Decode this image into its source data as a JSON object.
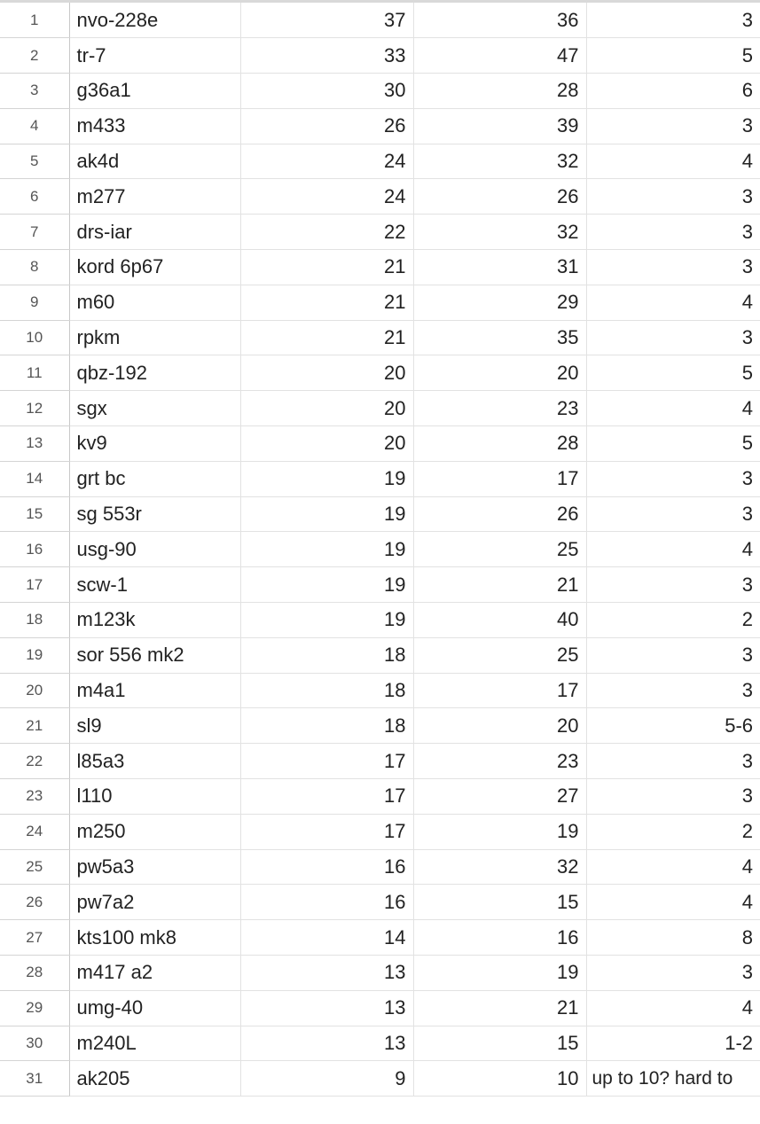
{
  "sheet": {
    "rows": [
      {
        "n": "1",
        "a": "nvo-228e",
        "b": "37",
        "c": "36",
        "d": "3"
      },
      {
        "n": "2",
        "a": "tr-7",
        "b": "33",
        "c": "47",
        "d": "5"
      },
      {
        "n": "3",
        "a": "g36a1",
        "b": "30",
        "c": "28",
        "d": "6"
      },
      {
        "n": "4",
        "a": "m433",
        "b": "26",
        "c": "39",
        "d": "3"
      },
      {
        "n": "5",
        "a": "ak4d",
        "b": "24",
        "c": "32",
        "d": "4"
      },
      {
        "n": "6",
        "a": "m277",
        "b": "24",
        "c": "26",
        "d": "3"
      },
      {
        "n": "7",
        "a": "drs-iar",
        "b": "22",
        "c": "32",
        "d": "3"
      },
      {
        "n": "8",
        "a": "kord 6p67",
        "b": "21",
        "c": "31",
        "d": "3"
      },
      {
        "n": "9",
        "a": "m60",
        "b": "21",
        "c": "29",
        "d": "4"
      },
      {
        "n": "10",
        "a": "rpkm",
        "b": "21",
        "c": "35",
        "d": "3"
      },
      {
        "n": "11",
        "a": "qbz-192",
        "b": "20",
        "c": "20",
        "d": "5"
      },
      {
        "n": "12",
        "a": "sgx",
        "b": "20",
        "c": "23",
        "d": "4"
      },
      {
        "n": "13",
        "a": "kv9",
        "b": "20",
        "c": "28",
        "d": "5"
      },
      {
        "n": "14",
        "a": "grt bc",
        "b": "19",
        "c": "17",
        "d": "3"
      },
      {
        "n": "15",
        "a": "sg 553r",
        "b": "19",
        "c": "26",
        "d": "3"
      },
      {
        "n": "16",
        "a": "usg-90",
        "b": "19",
        "c": "25",
        "d": "4"
      },
      {
        "n": "17",
        "a": "scw-1",
        "b": "19",
        "c": "21",
        "d": "3"
      },
      {
        "n": "18",
        "a": "m123k",
        "b": "19",
        "c": "40",
        "d": "2"
      },
      {
        "n": "19",
        "a": "sor 556 mk2",
        "b": "18",
        "c": "25",
        "d": "3"
      },
      {
        "n": "20",
        "a": "m4a1",
        "b": "18",
        "c": "17",
        "d": "3"
      },
      {
        "n": "21",
        "a": "sl9",
        "b": "18",
        "c": "20",
        "d": "5-6"
      },
      {
        "n": "22",
        "a": "l85a3",
        "b": "17",
        "c": "23",
        "d": "3"
      },
      {
        "n": "23",
        "a": "l110",
        "b": "17",
        "c": "27",
        "d": "3"
      },
      {
        "n": "24",
        "a": "m250",
        "b": "17",
        "c": "19",
        "d": "2"
      },
      {
        "n": "25",
        "a": "pw5a3",
        "b": "16",
        "c": "32",
        "d": "4"
      },
      {
        "n": "26",
        "a": "pw7a2",
        "b": "16",
        "c": "15",
        "d": "4"
      },
      {
        "n": "27",
        "a": "kts100 mk8",
        "b": "14",
        "c": "16",
        "d": "8"
      },
      {
        "n": "28",
        "a": "m417 a2",
        "b": "13",
        "c": "19",
        "d": "3"
      },
      {
        "n": "29",
        "a": "umg-40",
        "b": "13",
        "c": "21",
        "d": "4"
      },
      {
        "n": "30",
        "a": "m240L",
        "b": "13",
        "c": "15",
        "d": "1-2"
      },
      {
        "n": "31",
        "a": "ak205",
        "b": "9",
        "c": "10",
        "d": "up to 10? hard to"
      }
    ]
  }
}
